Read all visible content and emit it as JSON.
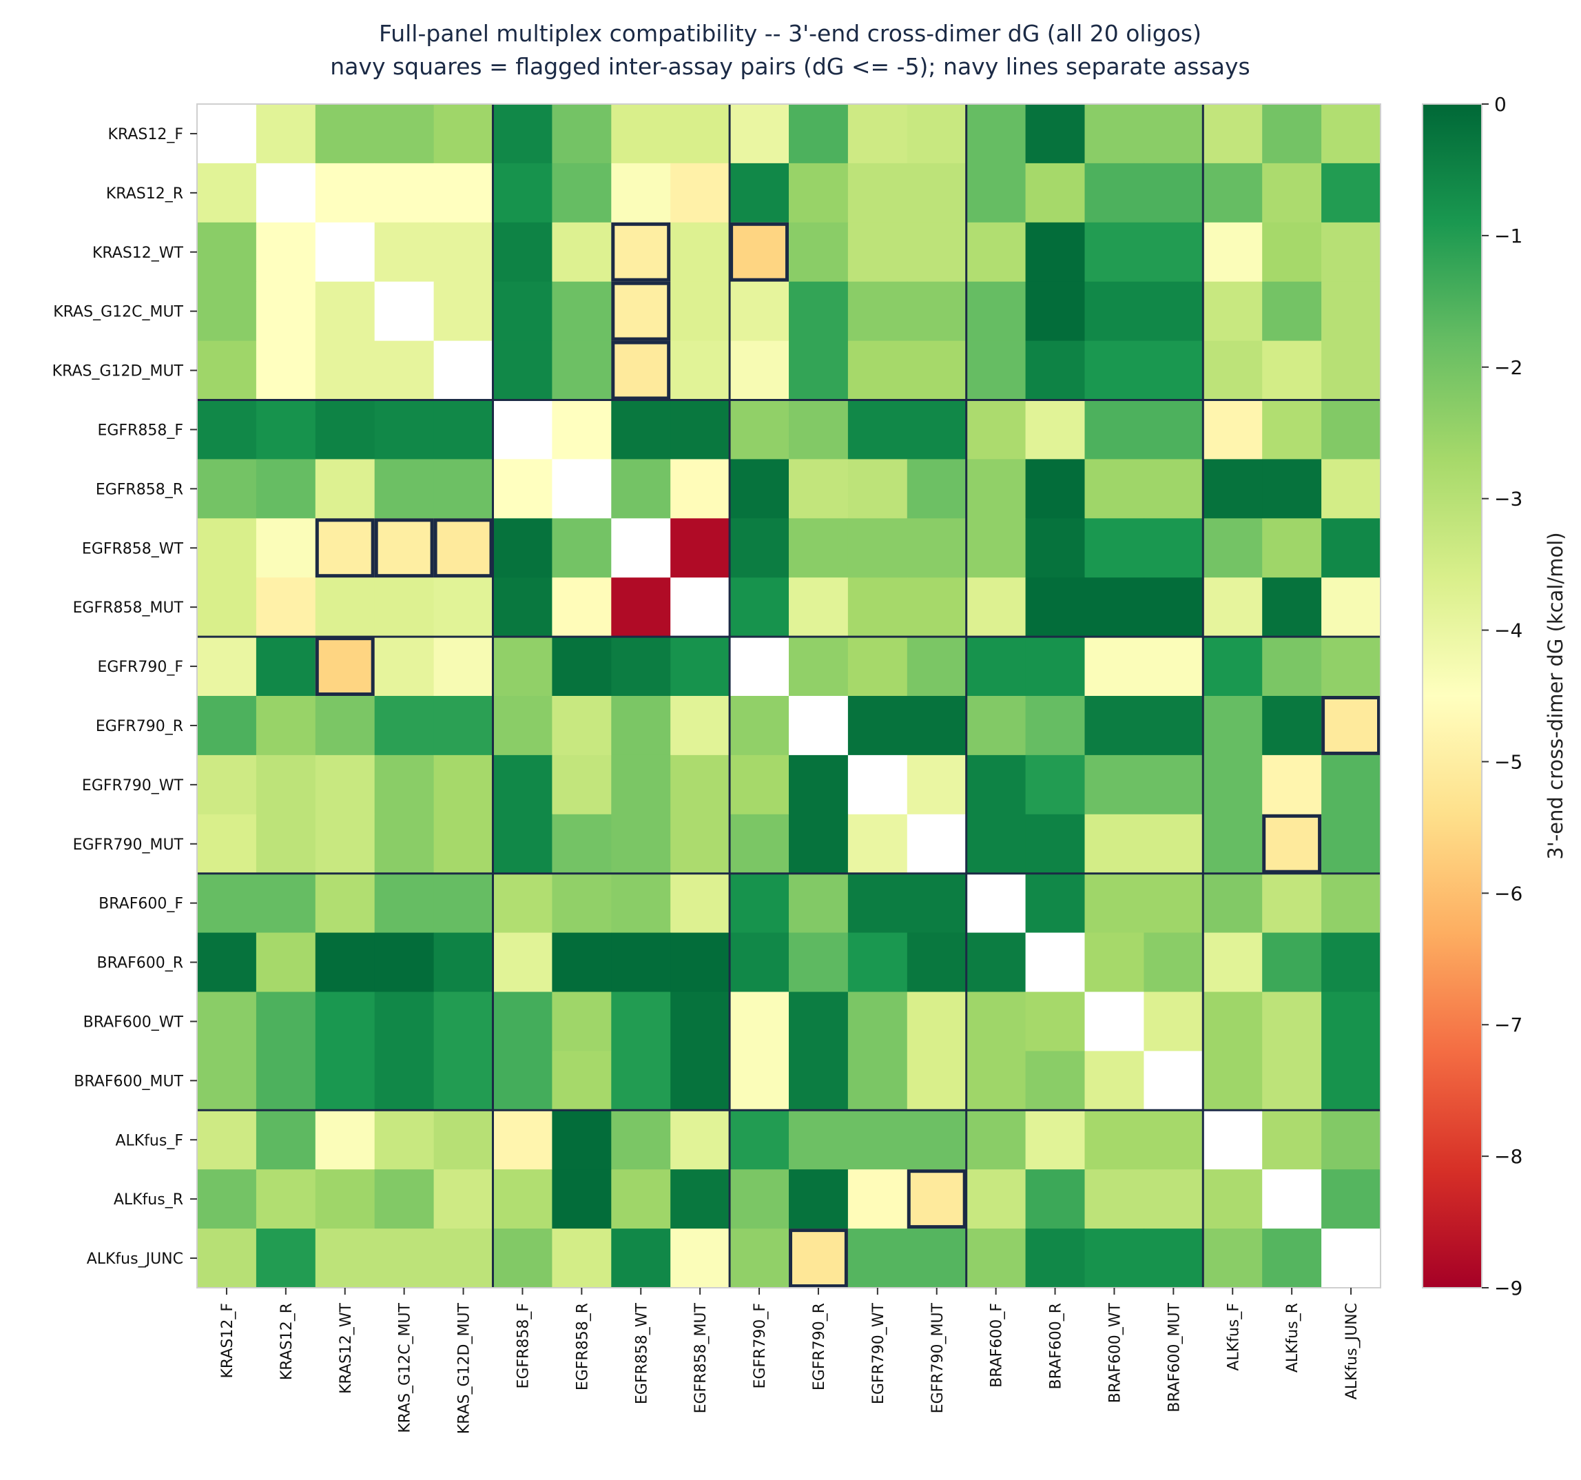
{
  "chart_data": {
    "type": "heatmap",
    "title": "Full-panel multiplex compatibility -- 3'-end cross-dimer dG (all 20 oligos)",
    "subtitle": "navy squares = flagged inter-assay pairs (dG <= -5); navy lines separate assays",
    "labels": [
      "KRAS12_F",
      "KRAS12_R",
      "KRAS12_WT",
      "KRAS_G12C_MUT",
      "KRAS_G12D_MUT",
      "EGFR858_F",
      "EGFR858_R",
      "EGFR858_WT",
      "EGFR858_MUT",
      "EGFR790_F",
      "EGFR790_R",
      "EGFR790_WT",
      "EGFR790_MUT",
      "BRAF600_F",
      "BRAF600_R",
      "BRAF600_WT",
      "BRAF600_MUT",
      "ALKfus_F",
      "ALKfus_R",
      "ALKfus_JUNC"
    ],
    "assay_boundaries": [
      5,
      9,
      13,
      17
    ],
    "values": [
      [
        null,
        -3.8,
        -2.3,
        -2.3,
        -2.6,
        -0.6,
        -2.0,
        -3.6,
        -3.6,
        -4.0,
        -1.5,
        -3.4,
        -3.3,
        -1.8,
        -0.2,
        -2.3,
        -2.3,
        -3.2,
        -2.0,
        -2.9
      ],
      [
        -3.8,
        null,
        -4.5,
        -4.5,
        -4.5,
        -0.8,
        -1.8,
        -4.4,
        -4.9,
        -0.6,
        -2.5,
        -3.1,
        -3.1,
        -1.8,
        -2.7,
        -1.5,
        -1.5,
        -1.8,
        -2.8,
        -1.0
      ],
      [
        -2.3,
        -4.5,
        null,
        -3.9,
        -3.9,
        -0.5,
        -3.7,
        -5.0,
        -3.7,
        -5.6,
        -2.3,
        -3.1,
        -3.1,
        -2.9,
        -0.1,
        -1.0,
        -1.0,
        -4.4,
        -2.7,
        -3.0
      ],
      [
        -2.3,
        -4.5,
        -3.9,
        null,
        -3.9,
        -0.6,
        -1.9,
        -5.0,
        -3.7,
        -3.9,
        -1.2,
        -2.3,
        -2.3,
        -1.8,
        -0.1,
        -0.6,
        -0.6,
        -3.3,
        -2.0,
        -3.0
      ],
      [
        -2.6,
        -4.5,
        -3.9,
        -3.9,
        null,
        -0.6,
        -1.9,
        -5.1,
        -3.8,
        -4.3,
        -1.2,
        -2.7,
        -2.7,
        -1.8,
        -0.5,
        -0.9,
        -0.9,
        -3.1,
        -3.5,
        -3.0
      ],
      [
        -0.6,
        -0.8,
        -0.5,
        -0.6,
        -0.6,
        null,
        -4.5,
        -0.3,
        -0.3,
        -2.4,
        -2.2,
        -0.6,
        -0.6,
        -2.8,
        -3.8,
        -1.5,
        -1.5,
        -4.8,
        -2.9,
        -2.2
      ],
      [
        -2.0,
        -1.8,
        -3.7,
        -1.9,
        -1.9,
        -4.5,
        null,
        -2.0,
        -4.6,
        -0.2,
        -3.2,
        -3.1,
        -1.9,
        -2.4,
        -0.1,
        -2.6,
        -2.6,
        -0.2,
        -0.2,
        -3.5
      ],
      [
        -3.6,
        -4.4,
        -5.0,
        -5.0,
        -5.1,
        -0.2,
        -2.0,
        null,
        -8.8,
        -0.4,
        -2.3,
        -2.3,
        -2.3,
        -2.4,
        -0.2,
        -0.9,
        -0.9,
        -2.0,
        -2.6,
        -0.6
      ],
      [
        -3.6,
        -4.9,
        -3.7,
        -3.7,
        -3.8,
        -0.3,
        -4.6,
        -8.8,
        null,
        -0.8,
        -3.8,
        -2.7,
        -2.7,
        -3.7,
        -0.1,
        -0.1,
        -0.1,
        -3.9,
        -0.2,
        -4.3
      ],
      [
        -4.0,
        -0.6,
        -5.6,
        -3.9,
        -4.3,
        -2.4,
        -0.2,
        -0.4,
        -0.8,
        null,
        -2.4,
        -2.7,
        -2.1,
        -0.8,
        -0.8,
        -4.4,
        -4.4,
        -0.9,
        -2.1,
        -2.4
      ],
      [
        -1.5,
        -2.5,
        -2.1,
        -1.1,
        -1.1,
        -2.3,
        -3.3,
        -2.1,
        -3.8,
        -2.4,
        null,
        -0.2,
        -0.2,
        -2.2,
        -1.8,
        -0.4,
        -0.4,
        -1.8,
        -0.3,
        -5.1
      ],
      [
        -3.4,
        -3.1,
        -3.3,
        -2.3,
        -2.7,
        -0.6,
        -3.2,
        -2.1,
        -2.8,
        -2.7,
        -0.2,
        null,
        -4.0,
        -0.5,
        -1.0,
        -1.9,
        -1.9,
        -1.8,
        -4.8,
        -1.6
      ],
      [
        -3.6,
        -3.1,
        -3.3,
        -2.3,
        -2.7,
        -0.6,
        -2.0,
        -2.1,
        -2.8,
        -2.1,
        -0.2,
        -4.0,
        null,
        -0.5,
        -0.5,
        -3.5,
        -3.5,
        -1.8,
        -5.1,
        -1.6
      ],
      [
        -1.8,
        -1.8,
        -2.9,
        -1.8,
        -1.8,
        -2.9,
        -2.4,
        -2.3,
        -3.7,
        -0.8,
        -2.2,
        -0.4,
        -0.4,
        null,
        -0.6,
        -2.6,
        -2.6,
        -2.2,
        -3.2,
        -2.4
      ],
      [
        -0.2,
        -2.7,
        -0.1,
        -0.1,
        -0.5,
        -3.8,
        -0.1,
        -0.1,
        -0.1,
        -0.6,
        -1.7,
        -0.9,
        -0.3,
        -0.4,
        null,
        -2.7,
        -2.3,
        -3.8,
        -1.3,
        -0.6
      ],
      [
        -2.3,
        -1.5,
        -0.9,
        -0.6,
        -1.0,
        -1.4,
        -2.6,
        -1.0,
        -0.2,
        -4.4,
        -0.4,
        -2.1,
        -3.6,
        -2.6,
        -2.7,
        null,
        -3.7,
        -2.6,
        -3.1,
        -0.8
      ],
      [
        -2.3,
        -1.5,
        -0.9,
        -0.6,
        -1.0,
        -1.4,
        -2.7,
        -1.0,
        -0.2,
        -4.4,
        -0.4,
        -2.1,
        -3.6,
        -2.6,
        -2.3,
        -3.7,
        null,
        -2.6,
        -3.1,
        -0.8
      ],
      [
        -3.4,
        -1.7,
        -4.4,
        -3.3,
        -3.0,
        -4.8,
        -0.1,
        -2.1,
        -3.8,
        -1.0,
        -1.9,
        -1.9,
        -1.9,
        -2.3,
        -3.8,
        -2.7,
        -2.7,
        null,
        -2.8,
        -2.2
      ],
      [
        -2.0,
        -2.9,
        -2.6,
        -2.2,
        -3.4,
        -2.9,
        -0.1,
        -2.6,
        -0.3,
        -2.1,
        -0.2,
        -4.6,
        -5.1,
        -3.3,
        -1.3,
        -3.1,
        -3.1,
        -2.8,
        null,
        -1.6
      ],
      [
        -3.0,
        -1.0,
        -3.1,
        -3.1,
        -3.1,
        -2.2,
        -3.5,
        -0.6,
        -4.4,
        -2.4,
        -5.2,
        -1.6,
        -1.6,
        -2.4,
        -0.6,
        -0.8,
        -0.8,
        -2.3,
        -1.6,
        null
      ]
    ],
    "flagged_pairs": [
      [
        2,
        7
      ],
      [
        2,
        9
      ],
      [
        3,
        7
      ],
      [
        4,
        7
      ],
      [
        7,
        2
      ],
      [
        7,
        3
      ],
      [
        7,
        4
      ],
      [
        9,
        2
      ],
      [
        10,
        19
      ],
      [
        12,
        18
      ],
      [
        18,
        12
      ],
      [
        19,
        10
      ]
    ],
    "colorbar": {
      "label": "3'-end cross-dimer dG (kcal/mol)",
      "range": [
        -9,
        0
      ],
      "ticks": [
        "0",
        "−1",
        "−2",
        "−3",
        "−4",
        "−5",
        "−6",
        "−7",
        "−8",
        "−9"
      ],
      "colormap": "RdYlGn"
    },
    "colors": {
      "flag_outline": "#1b2a45",
      "title": "#1b2a45",
      "diagonal": "#ffffff"
    }
  }
}
